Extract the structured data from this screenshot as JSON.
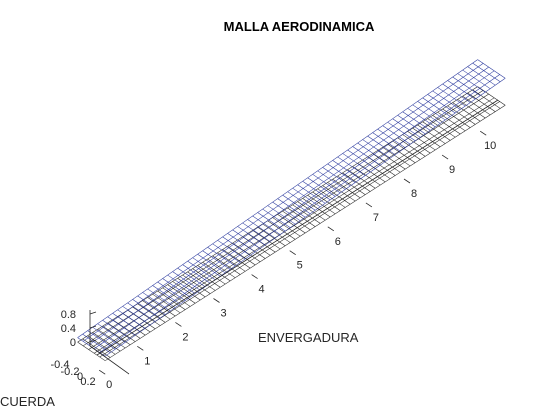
{
  "chart_data": {
    "type": "3d-mesh",
    "title": "MALLA AERODINAMICA",
    "xlabel": "ENVERGADURA",
    "ylabel": "CUERDA",
    "zlabel": "",
    "xlim": [
      0,
      10.5
    ],
    "ylim": [
      -0.4,
      0.2
    ],
    "zlim": [
      -0.4,
      0.8
    ],
    "x_ticks": [
      "0",
      "1",
      "2",
      "3",
      "4",
      "5",
      "6",
      "7",
      "8",
      "9",
      "10"
    ],
    "y_ticks": [
      "-0.4",
      "-0.2",
      "0",
      "0.2"
    ],
    "z_ticks": [
      "0",
      "0.4",
      "0.8"
    ],
    "series": [
      {
        "color": "#2b3a9e",
        "span": [
          0,
          10.5
        ],
        "chord": [
          -0.4,
          0.2
        ],
        "z_root": 0.0,
        "z_tip": 0.6,
        "span_divisions": 80,
        "chord_divisions": 5
      },
      {
        "color": "#222222",
        "span": [
          0,
          10.5
        ],
        "chord": [
          -0.4,
          0.2
        ],
        "z_root": -0.1,
        "z_tip": 0.0,
        "span_divisions": 80,
        "chord_divisions": 5
      }
    ]
  }
}
